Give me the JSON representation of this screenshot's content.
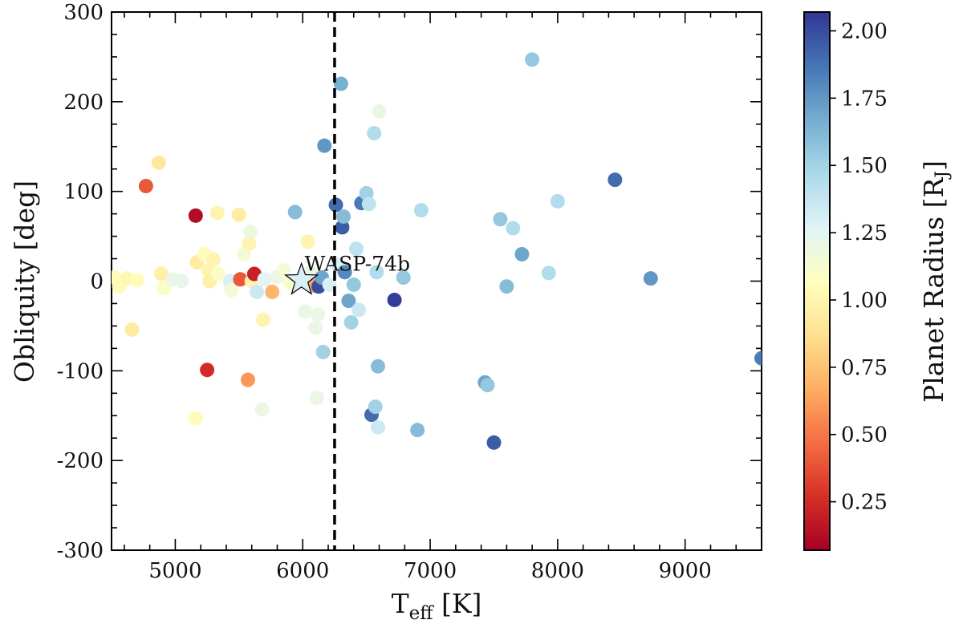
{
  "chart_data": {
    "type": "scatter",
    "title": "",
    "xlabel_main": "T",
    "xlabel_sub": "eff",
    "xlabel_unit": " [K]",
    "ylabel": "Obliquity [deg]",
    "xlim": [
      4500,
      9600
    ],
    "ylim": [
      -300,
      300
    ],
    "x_ticks": [
      5000,
      6000,
      7000,
      8000,
      9000
    ],
    "x_tick_labels": [
      "5000",
      "6000",
      "7000",
      "8000",
      "9000"
    ],
    "y_ticks": [
      -300,
      -200,
      -100,
      0,
      100,
      200,
      300
    ],
    "y_tick_labels": [
      "-300",
      "-200",
      "-100",
      "0",
      "100",
      "200",
      "300"
    ],
    "vline_x": 6250,
    "highlight": {
      "name": "WASP-74b",
      "teff": 5990,
      "obliquity": 1,
      "radius": 1.3
    },
    "colorbar": {
      "label_main": "Planet Radius [R",
      "label_sub": "J",
      "label_end": "]",
      "min": 0.07,
      "max": 2.07,
      "ticks": [
        0.25,
        0.5,
        0.75,
        1.0,
        1.25,
        1.5,
        1.75,
        2.0
      ],
      "tick_labels": [
        "0.25",
        "0.50",
        "0.75",
        "1.00",
        "1.25",
        "1.50",
        "1.75",
        "2.00"
      ],
      "colormap": "RdYlBu",
      "colormap_stops": [
        "#a50026",
        "#d73027",
        "#f46d43",
        "#fdae61",
        "#fee090",
        "#ffffbf",
        "#e0f3f8",
        "#abd9e9",
        "#74add1",
        "#4575b4",
        "#313695"
      ]
    },
    "points": [
      {
        "teff": 4520,
        "obliquity": 4,
        "radius": 1.05
      },
      {
        "teff": 4560,
        "obliquity": -6,
        "radius": 1.05
      },
      {
        "teff": 4620,
        "obliquity": 3,
        "radius": 1.02
      },
      {
        "teff": 4660,
        "obliquity": -54,
        "radius": 0.95
      },
      {
        "teff": 4700,
        "obliquity": 1,
        "radius": 1.05
      },
      {
        "teff": 4770,
        "obliquity": 106,
        "radius": 0.4
      },
      {
        "teff": 4870,
        "obliquity": 132,
        "radius": 0.92
      },
      {
        "teff": 4890,
        "obliquity": 8,
        "radius": 0.97
      },
      {
        "teff": 4910,
        "obliquity": -8,
        "radius": 1.1
      },
      {
        "teff": 4980,
        "obliquity": 2,
        "radius": 1.2
      },
      {
        "teff": 5050,
        "obliquity": 0,
        "radius": 1.22
      },
      {
        "teff": 5160,
        "obliquity": 73,
        "radius": 0.12
      },
      {
        "teff": 5170,
        "obliquity": 21,
        "radius": 0.95
      },
      {
        "teff": 5230,
        "obliquity": 30,
        "radius": 1.05
      },
      {
        "teff": 5250,
        "obliquity": -99,
        "radius": 0.25
      },
      {
        "teff": 5260,
        "obliquity": 12,
        "radius": 1.0
      },
      {
        "teff": 5270,
        "obliquity": 0,
        "radius": 0.97
      },
      {
        "teff": 5300,
        "obliquity": 24,
        "radius": 1.0
      },
      {
        "teff": 5330,
        "obliquity": 76,
        "radius": 1.0
      },
      {
        "teff": 5340,
        "obliquity": 8,
        "radius": 1.1
      },
      {
        "teff": 5160,
        "obliquity": -153,
        "radius": 1.05
      },
      {
        "teff": 5430,
        "obliquity": 0,
        "radius": 1.3
      },
      {
        "teff": 5440,
        "obliquity": -10,
        "radius": 1.15
      },
      {
        "teff": 5500,
        "obliquity": 74,
        "radius": 0.95
      },
      {
        "teff": 5510,
        "obliquity": 2,
        "radius": 0.4
      },
      {
        "teff": 5540,
        "obliquity": 30,
        "radius": 1.15
      },
      {
        "teff": 5570,
        "obliquity": -110,
        "radius": 0.6
      },
      {
        "teff": 5580,
        "obliquity": 42,
        "radius": 1.0
      },
      {
        "teff": 5590,
        "obliquity": 55,
        "radius": 1.18
      },
      {
        "teff": 5600,
        "obliquity": 0,
        "radius": 1.0
      },
      {
        "teff": 5620,
        "obliquity": 8,
        "radius": 0.2
      },
      {
        "teff": 5640,
        "obliquity": -12,
        "radius": 1.35
      },
      {
        "teff": 5680,
        "obliquity": -143,
        "radius": 1.2
      },
      {
        "teff": 5690,
        "obliquity": -43,
        "radius": 1.0
      },
      {
        "teff": 5700,
        "obliquity": 2,
        "radius": 1.25
      },
      {
        "teff": 5760,
        "obliquity": -12,
        "radius": 0.7
      },
      {
        "teff": 5800,
        "obliquity": 5,
        "radius": 1.2
      },
      {
        "teff": 5850,
        "obliquity": 12,
        "radius": 1.15
      },
      {
        "teff": 5900,
        "obliquity": -2,
        "radius": 1.1
      },
      {
        "teff": 5940,
        "obliquity": 77,
        "radius": 1.6
      },
      {
        "teff": 6020,
        "obliquity": -34,
        "radius": 1.2
      },
      {
        "teff": 6040,
        "obliquity": 44,
        "radius": 1.0
      },
      {
        "teff": 6060,
        "obliquity": 10,
        "radius": 1.2
      },
      {
        "teff": 6080,
        "obliquity": -5,
        "radius": 0.65
      },
      {
        "teff": 6100,
        "obliquity": -52,
        "radius": 1.2
      },
      {
        "teff": 6110,
        "obliquity": -130,
        "radius": 1.2
      },
      {
        "teff": 6120,
        "obliquity": -37,
        "radius": 1.2
      },
      {
        "teff": 6125,
        "obliquity": -6,
        "radius": 2.0
      },
      {
        "teff": 6150,
        "obliquity": 4,
        "radius": 1.7
      },
      {
        "teff": 6160,
        "obliquity": -79,
        "radius": 1.5
      },
      {
        "teff": 6170,
        "obliquity": 151,
        "radius": 1.75
      },
      {
        "teff": 6210,
        "obliquity": -4,
        "radius": 1.3
      },
      {
        "teff": 6260,
        "obliquity": 85,
        "radius": 1.9
      },
      {
        "teff": 6270,
        "obliquity": 18,
        "radius": 1.3
      },
      {
        "teff": 6300,
        "obliquity": 220,
        "radius": 1.65
      },
      {
        "teff": 6310,
        "obliquity": 60,
        "radius": 1.95
      },
      {
        "teff": 6320,
        "obliquity": 72,
        "radius": 1.6
      },
      {
        "teff": 6330,
        "obliquity": 10,
        "radius": 1.8
      },
      {
        "teff": 6360,
        "obliquity": -22,
        "radius": 1.7
      },
      {
        "teff": 6380,
        "obliquity": -46,
        "radius": 1.5
      },
      {
        "teff": 6400,
        "obliquity": -4,
        "radius": 1.55
      },
      {
        "teff": 6420,
        "obliquity": 36,
        "radius": 1.4
      },
      {
        "teff": 6440,
        "obliquity": -32,
        "radius": 1.35
      },
      {
        "teff": 6460,
        "obliquity": 87,
        "radius": 1.85
      },
      {
        "teff": 6500,
        "obliquity": 98,
        "radius": 1.5
      },
      {
        "teff": 6520,
        "obliquity": 86,
        "radius": 1.4
      },
      {
        "teff": 6540,
        "obliquity": -149,
        "radius": 1.9
      },
      {
        "teff": 6560,
        "obliquity": 165,
        "radius": 1.45
      },
      {
        "teff": 6570,
        "obliquity": -140,
        "radius": 1.5
      },
      {
        "teff": 6580,
        "obliquity": 10,
        "radius": 1.45
      },
      {
        "teff": 6590,
        "obliquity": -163,
        "radius": 1.35
      },
      {
        "teff": 6590,
        "obliquity": -95,
        "radius": 1.6
      },
      {
        "teff": 6600,
        "obliquity": 189,
        "radius": 1.2
      },
      {
        "teff": 6720,
        "obliquity": -21,
        "radius": 2.05
      },
      {
        "teff": 6790,
        "obliquity": 4,
        "radius": 1.55
      },
      {
        "teff": 6900,
        "obliquity": -166,
        "radius": 1.6
      },
      {
        "teff": 6930,
        "obliquity": 79,
        "radius": 1.45
      },
      {
        "teff": 7430,
        "obliquity": -113,
        "radius": 1.7
      },
      {
        "teff": 7450,
        "obliquity": -116,
        "radius": 1.55
      },
      {
        "teff": 7500,
        "obliquity": -180,
        "radius": 1.95
      },
      {
        "teff": 7550,
        "obliquity": 69,
        "radius": 1.55
      },
      {
        "teff": 7600,
        "obliquity": -6,
        "radius": 1.6
      },
      {
        "teff": 7650,
        "obliquity": 59,
        "radius": 1.45
      },
      {
        "teff": 7720,
        "obliquity": 30,
        "radius": 1.7
      },
      {
        "teff": 7800,
        "obliquity": 247,
        "radius": 1.55
      },
      {
        "teff": 7930,
        "obliquity": 9,
        "radius": 1.45
      },
      {
        "teff": 8000,
        "obliquity": 89,
        "radius": 1.45
      },
      {
        "teff": 8450,
        "obliquity": 113,
        "radius": 1.9
      },
      {
        "teff": 8730,
        "obliquity": 3,
        "radius": 1.75
      },
      {
        "teff": 9600,
        "obliquity": -86,
        "radius": 1.85
      }
    ]
  }
}
